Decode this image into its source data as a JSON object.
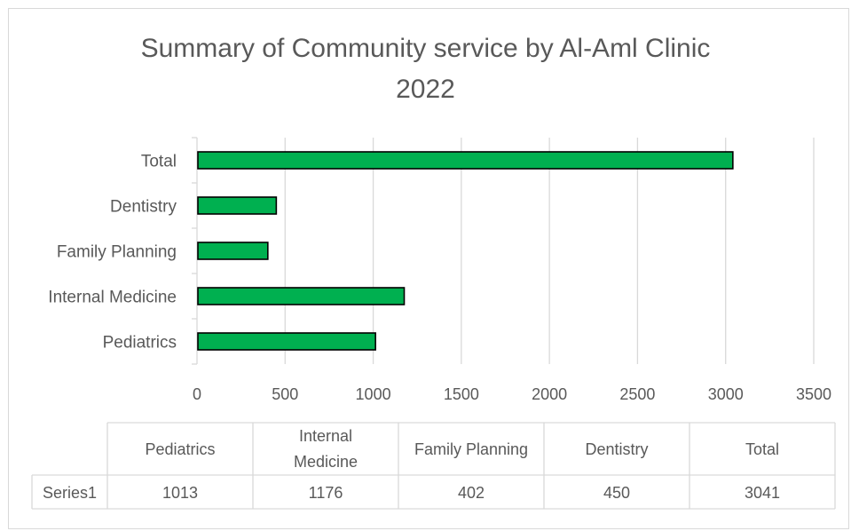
{
  "chart_data": {
    "type": "bar",
    "orientation": "horizontal",
    "title_line1": "Summary of Community service by Al-Aml Clinic",
    "title_line2": "2022",
    "categories": [
      "Pediatrics",
      "Internal Medicine",
      "Family Planning",
      "Dentistry",
      "Total"
    ],
    "series": [
      {
        "name": "Series1",
        "values": [
          1013,
          1176,
          402,
          450,
          3041
        ]
      }
    ],
    "xlim": [
      0,
      3500
    ],
    "x_ticks": [
      0,
      500,
      1000,
      1500,
      2000,
      2500,
      3000,
      3500
    ],
    "grid": true,
    "legend": "none",
    "data_table": {
      "headers": [
        "Pediatrics",
        "Internal Medicine",
        "Family Planning",
        "Dentistry",
        "Total"
      ],
      "row_label": "Series1",
      "values": [
        "1013",
        "1176",
        "402",
        "450",
        "3041"
      ]
    },
    "bar_color": "#00b050",
    "bar_border_color": "#000000"
  }
}
